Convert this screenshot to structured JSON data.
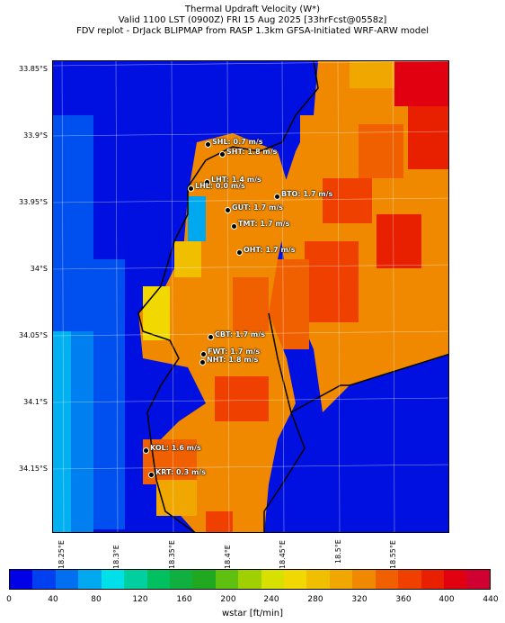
{
  "title": {
    "line1": "Thermal Updraft Velocity (W*)",
    "line2": "Valid 1100 LST (0900Z) FRI 15 Aug 2025 [33hrFcst@0558z]",
    "line3": "FDV replot - DrJack BLIPMAP from RASP 1.3km GFSA-Initiated WRF-ARW model"
  },
  "axes": {
    "lat_labels": [
      "33.85°S",
      "33.9°S",
      "33.95°S",
      "34°S",
      "34.05°S",
      "34.1°S",
      "34.15°S"
    ],
    "lon_labels": [
      "18.25°E",
      "18.3°E",
      "18.35°E",
      "18.4°E",
      "18.45°E",
      "18.5°E",
      "18.55°E"
    ]
  },
  "stations": [
    {
      "label": "SHL: 0.7 m/s"
    },
    {
      "label": "SHT: 1.8 m/s"
    },
    {
      "label": "LHT: 1.4 m/s"
    },
    {
      "label": "LHL: 0.0 m/s"
    },
    {
      "label": "BTO: 1.7 m/s"
    },
    {
      "label": "GUT: 1.7 m/s"
    },
    {
      "label": "TMT: 1.7 m/s"
    },
    {
      "label": "OHT: 1.7 m/s"
    },
    {
      "label": "CBT: 1.7 m/s"
    },
    {
      "label": "FWT: 1.7 m/s"
    },
    {
      "label": "NHT: 1.8 m/s"
    },
    {
      "label": "KOL: 1.6 m/s"
    },
    {
      "label": "KRT: 0.3 m/s"
    }
  ],
  "colorbar": {
    "title": "wstar [ft/min]",
    "ticks": [
      "0",
      "40",
      "80",
      "120",
      "160",
      "200",
      "240",
      "280",
      "320",
      "360",
      "400",
      "440"
    ],
    "colors": [
      "#0000e6",
      "#0040f0",
      "#0070f0",
      "#00a8f0",
      "#00e0e8",
      "#00d0a0",
      "#00c060",
      "#10b040",
      "#20a820",
      "#60c010",
      "#a0d000",
      "#d8e000",
      "#f0d800",
      "#f0c000",
      "#f0a800",
      "#f08800",
      "#f06000",
      "#f04000",
      "#e82000",
      "#e00010",
      "#d00030"
    ]
  },
  "legend_stops": [
    {
      "value": 0,
      "color": "#0000e6"
    },
    {
      "value": 200,
      "color": "#60c010"
    },
    {
      "value": 280,
      "color": "#f0d800"
    },
    {
      "value": 360,
      "color": "#f06000"
    },
    {
      "value": 440,
      "color": "#d00030"
    }
  ]
}
